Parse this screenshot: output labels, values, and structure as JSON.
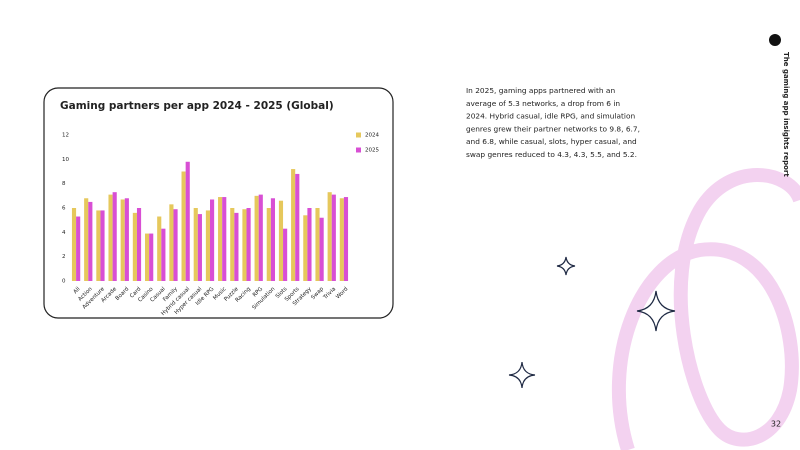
{
  "chart_data": {
    "type": "bar",
    "title": "Gaming partners per app 2024 - 2025 (Global)",
    "categories": [
      "All",
      "Action",
      "Adventure",
      "Arcade",
      "Board",
      "Card",
      "Casino",
      "Casual",
      "Family",
      "Hybrid casual",
      "Hyper casual",
      "Idle RPG",
      "Music",
      "Puzzle",
      "Racing",
      "RPG",
      "Simulation",
      "Slots",
      "Sports",
      "Strategy",
      "Swap",
      "Trivia",
      "Word"
    ],
    "series": [
      {
        "name": "2024",
        "color": "#e6c85c",
        "values": [
          6.0,
          6.8,
          5.8,
          7.1,
          6.7,
          5.6,
          3.9,
          5.3,
          6.3,
          9.0,
          6.0,
          5.8,
          6.9,
          6.0,
          5.9,
          7.0,
          6.0,
          6.6,
          9.2,
          5.4,
          6.0,
          7.3,
          6.8
        ]
      },
      {
        "name": "2025",
        "color": "#d84fd4",
        "values": [
          5.3,
          6.5,
          5.8,
          7.3,
          6.8,
          6.0,
          3.9,
          4.3,
          5.9,
          9.8,
          5.5,
          6.7,
          6.9,
          5.6,
          6.0,
          7.1,
          6.8,
          4.3,
          8.8,
          6.0,
          5.2,
          7.1,
          6.9
        ]
      }
    ],
    "ylim": [
      0,
      12
    ],
    "yticks": [
      0,
      2,
      4,
      6,
      8,
      10,
      12
    ],
    "grid": false,
    "legend": "right"
  },
  "body": {
    "lines": [
      "In 2025, gaming apps partnered with an",
      "average of 5.3 networks, a drop from 6 in",
      "2024. Hybrid casual, idle RPG, and simulation",
      "genres grew their partner networks to 9.8, 6.7,",
      "and 6.8, while casual, slots, hyper casual, and",
      "swap genres reduced to 4.3, 4.3, 5.5, and 5.2."
    ]
  },
  "header": {
    "report": "The gaming app insights report"
  },
  "footer": {
    "page": "32"
  }
}
